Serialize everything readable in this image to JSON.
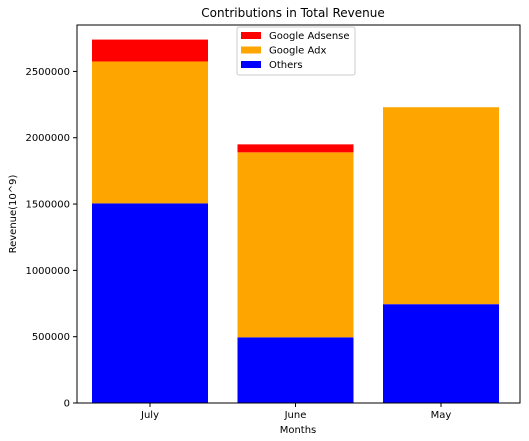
{
  "chart_data": {
    "type": "bar",
    "stacked": true,
    "title": "Contributions in Total Revenue",
    "xlabel": "Months",
    "ylabel": "Revenue(10^9)",
    "categories": [
      "July",
      "June",
      "May"
    ],
    "ylim": [
      0,
      2850000
    ],
    "yticks": [
      0,
      500000,
      1000000,
      1500000,
      2000000,
      2500000
    ],
    "ytick_labels": [
      "0",
      "500000",
      "1000000",
      "1500000",
      "2000000",
      "2500000"
    ],
    "series": [
      {
        "name": "Others",
        "color": "#0000ff",
        "values": [
          1505000,
          495000,
          745000
        ]
      },
      {
        "name": "Google Adx",
        "color": "#ffa500",
        "values": [
          1070000,
          1395000,
          1485000
        ]
      },
      {
        "name": "Google Adsense",
        "color": "#ff0000",
        "values": [
          165000,
          60000,
          0
        ]
      }
    ],
    "legend": {
      "placement": "upper center",
      "entries": [
        "Google Adsense",
        "Google Adx",
        "Others"
      ]
    }
  }
}
